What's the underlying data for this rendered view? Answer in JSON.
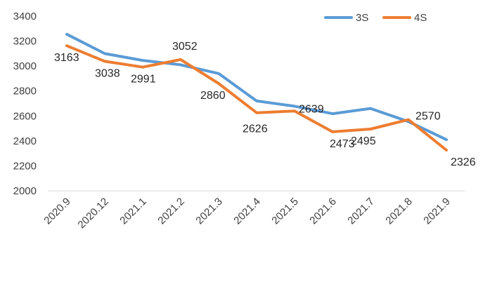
{
  "chart_data": {
    "type": "line",
    "categories": [
      "2020.9",
      "2020.12",
      "2021.1",
      "2021.2",
      "2021.3",
      "2021.4",
      "2021.5",
      "2021.6",
      "2021.7",
      "2021.8",
      "2021.9"
    ],
    "ylim": [
      2000,
      3400
    ],
    "yticks": [
      "2000",
      "2200",
      "2400",
      "2600",
      "2800",
      "3000",
      "3200",
      "3400"
    ],
    "grid": false,
    "legend_position": "top-right",
    "series": [
      {
        "name": "3S",
        "color": "#5B9BD5",
        "values": [
          3255,
          3100,
          3045,
          3010,
          2940,
          2720,
          2678,
          2618,
          2660,
          2555,
          2410
        ]
      },
      {
        "name": "4S",
        "color": "#ED7D31",
        "values": [
          3163,
          3038,
          2991,
          3052,
          2860,
          2626,
          2639,
          2473,
          2495,
          2570,
          2326
        ],
        "labels": [
          "3163",
          "3038",
          "2991",
          "3052",
          "2860",
          "2626",
          "2639",
          "2473",
          "2495",
          "2570",
          "2326"
        ]
      }
    ]
  }
}
